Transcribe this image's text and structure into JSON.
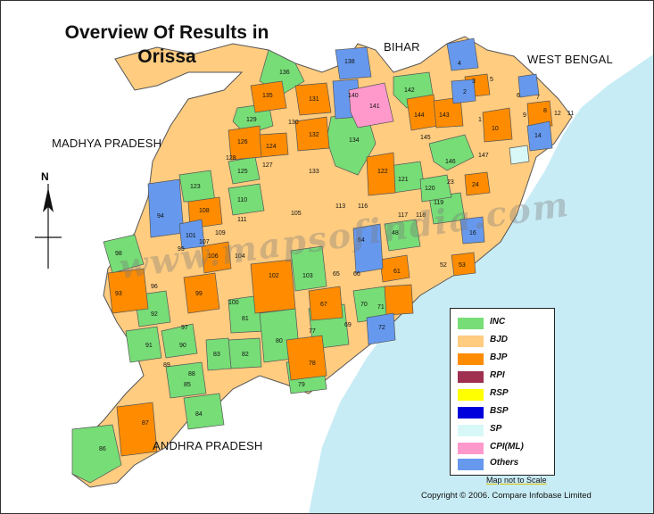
{
  "title": {
    "line1": "Overview Of Results in",
    "line2": "Orissa"
  },
  "neighbors": {
    "bihar": "BIHAR",
    "west_bengal": "WEST BENGAL",
    "madhya_pradesh": "MADHYA PRADESH",
    "andhra_pradesh": "ANDHRA PRADESH"
  },
  "compass_label": "N",
  "watermark": "www.mapsofindia.com",
  "legend": [
    {
      "label": "INC",
      "color": "#77dd77"
    },
    {
      "label": "BJD",
      "color": "#ffcc80"
    },
    {
      "label": "BJP",
      "color": "#ff8c00"
    },
    {
      "label": "RPI",
      "color": "#a03050"
    },
    {
      "label": "RSP",
      "color": "#ffff00"
    },
    {
      "label": "BSP",
      "color": "#0000dd"
    },
    {
      "label": "SP",
      "color": "#d8f8f8"
    },
    {
      "label": "CPI(ML)",
      "color": "#ff99cc"
    },
    {
      "label": "Others",
      "color": "#6699ee"
    }
  ],
  "scale_note": "Map not to Scale",
  "copyright": "Copyright © 2006. Compare Infobase Limited",
  "colors": {
    "sea": "#c8ecf5",
    "land_outside": "#ffffff"
  },
  "constituencies": [
    {
      "n": "1"
    },
    {
      "n": "2"
    },
    {
      "n": "3"
    },
    {
      "n": "4"
    },
    {
      "n": "5"
    },
    {
      "n": "6"
    },
    {
      "n": "7"
    },
    {
      "n": "8"
    },
    {
      "n": "9"
    },
    {
      "n": "10"
    },
    {
      "n": "11"
    },
    {
      "n": "12"
    },
    {
      "n": "14"
    },
    {
      "n": "16"
    },
    {
      "n": "23"
    },
    {
      "n": "24"
    },
    {
      "n": "48"
    },
    {
      "n": "52"
    },
    {
      "n": "53"
    },
    {
      "n": "61"
    },
    {
      "n": "64"
    },
    {
      "n": "65"
    },
    {
      "n": "66"
    },
    {
      "n": "67"
    },
    {
      "n": "69"
    },
    {
      "n": "70"
    },
    {
      "n": "71"
    },
    {
      "n": "72"
    },
    {
      "n": "77"
    },
    {
      "n": "78"
    },
    {
      "n": "79"
    },
    {
      "n": "80"
    },
    {
      "n": "81"
    },
    {
      "n": "82"
    },
    {
      "n": "83"
    },
    {
      "n": "84"
    },
    {
      "n": "85"
    },
    {
      "n": "86"
    },
    {
      "n": "87"
    },
    {
      "n": "88"
    },
    {
      "n": "89"
    },
    {
      "n": "90"
    },
    {
      "n": "91"
    },
    {
      "n": "92"
    },
    {
      "n": "93"
    },
    {
      "n": "94"
    },
    {
      "n": "95"
    },
    {
      "n": "96"
    },
    {
      "n": "97"
    },
    {
      "n": "98"
    },
    {
      "n": "99"
    },
    {
      "n": "100"
    },
    {
      "n": "101"
    },
    {
      "n": "102"
    },
    {
      "n": "103"
    },
    {
      "n": "104"
    },
    {
      "n": "105"
    },
    {
      "n": "106"
    },
    {
      "n": "107"
    },
    {
      "n": "108"
    },
    {
      "n": "109"
    },
    {
      "n": "110"
    },
    {
      "n": "111"
    },
    {
      "n": "113"
    },
    {
      "n": "116"
    },
    {
      "n": "117"
    },
    {
      "n": "118"
    },
    {
      "n": "119"
    },
    {
      "n": "120"
    },
    {
      "n": "121"
    },
    {
      "n": "122"
    },
    {
      "n": "123"
    },
    {
      "n": "124"
    },
    {
      "n": "125"
    },
    {
      "n": "126"
    },
    {
      "n": "127"
    },
    {
      "n": "128"
    },
    {
      "n": "129"
    },
    {
      "n": "130"
    },
    {
      "n": "131"
    },
    {
      "n": "132"
    },
    {
      "n": "133"
    },
    {
      "n": "134"
    },
    {
      "n": "135"
    },
    {
      "n": "136"
    },
    {
      "n": "137"
    },
    {
      "n": "138"
    },
    {
      "n": "139"
    },
    {
      "n": "140"
    },
    {
      "n": "141"
    },
    {
      "n": "142"
    },
    {
      "n": "143"
    },
    {
      "n": "144"
    },
    {
      "n": "145"
    },
    {
      "n": "146"
    },
    {
      "n": "147"
    }
  ]
}
